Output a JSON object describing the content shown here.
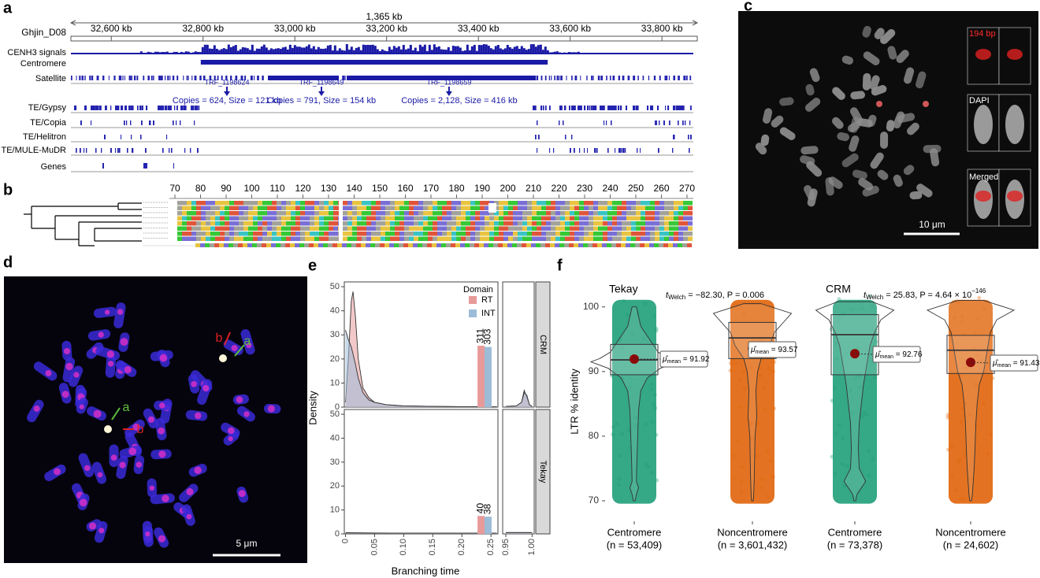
{
  "panel_a": {
    "label": "a",
    "chrom": "Ghjin_D08",
    "span": "1,365 kb",
    "xlim": [
      32512,
      33877
    ],
    "xticks": [
      {
        "value": 32600,
        "label": "32,600 kb"
      },
      {
        "value": 32800,
        "label": "32,800 kb"
      },
      {
        "value": 33000,
        "label": "33,000 kb"
      },
      {
        "value": 33200,
        "label": "33,200 kb"
      },
      {
        "value": 33400,
        "label": "33,400 kb"
      },
      {
        "value": 33600,
        "label": "33,600 kb"
      },
      {
        "value": 33800,
        "label": "33,800 kb"
      }
    ],
    "tracks": [
      "CENH3 signals",
      "Centromere",
      "Satellite",
      "TE/Gypsy",
      "TE/Copia",
      "TE/Helitron",
      "TE/MULE-MuDR",
      "Genes"
    ],
    "centromere": [
      32795,
      33551
    ],
    "satellites": [
      {
        "name": "TRF_1198624",
        "position": 32852,
        "note": "Copies = 624, Size = 121 kb"
      },
      {
        "name": "TRF_1198649",
        "position": 33058,
        "note": "Copies = 791, Size = 154 kb"
      },
      {
        "name": "TRF_1198659",
        "position": 33336,
        "note": "Copies = 2,128, Size = 416 kb"
      }
    ]
  },
  "panel_b": {
    "label": "b",
    "ruler": [
      70,
      80,
      90,
      100,
      110,
      120,
      130,
      140,
      150,
      160,
      170,
      180,
      190,
      200,
      210,
      220,
      230,
      240,
      250,
      260,
      270
    ]
  },
  "panel_c": {
    "label": "c",
    "probe": "194 bp",
    "dapi": "DAPI",
    "merged": "Merged",
    "scale": "10 μm"
  },
  "panel_d": {
    "label": "d",
    "arrows": [
      "b",
      "a",
      "a",
      "b"
    ],
    "scale": "5 μm"
  },
  "panel_e": {
    "label": "e",
    "ylabel": "Density",
    "xlabel": "Branching time",
    "legend_title": "Domain",
    "series": [
      {
        "name": "RT",
        "color": "#e89a9a"
      },
      {
        "name": "INT",
        "color": "#9dbcd8"
      }
    ],
    "ylim": [
      0,
      52
    ],
    "yticks": [
      0,
      10,
      20,
      30,
      40,
      50
    ],
    "xlim_left": [
      -0.002,
      0.262
    ],
    "xticks_left": [
      0,
      0.05,
      {
        "value": 0.1,
        "label": "0.10"
      },
      0.15,
      {
        "value": 0.2,
        "label": "0.20"
      },
      0.25
    ],
    "xlim_right": [
      0.944,
      1.004
    ],
    "xticks_right": [
      0.95,
      {
        "value": 1,
        "label": "1.00"
      }
    ],
    "bar_x": [
      0.233,
      0.245
    ],
    "facets": [
      {
        "name": "CRM",
        "bar_heights": [
          25.5,
          25
        ],
        "counts": [
          311,
          303
        ],
        "curves": [
          {
            "x": [
              0,
              0.005,
              0.01,
              0.013,
              0.017,
              0.022,
              0.03,
              0.04,
              0.05,
              0.07,
              0.1,
              0.15,
              0.2,
              0.26
            ],
            "values": [
              2,
              20,
              44,
              48,
              38,
              20,
              8,
              4,
              2,
              1,
              0.5,
              0.3,
              0.2,
              0.1
            ]
          },
          {
            "x": [
              0,
              0.005,
              0.01,
              0.013,
              0.017,
              0.022,
              0.03,
              0.04,
              0.05,
              0.07,
              0.1,
              0.15,
              0.2,
              0.26
            ],
            "values": [
              32,
              28,
              25,
              22,
              18,
              12,
              6,
              3,
              2,
              1,
              0.5,
              0.3,
              0.2,
              0.1
            ]
          }
        ],
        "right_curves": [
          {
            "x": [
              0.95,
              0.97,
              0.98,
              0.985,
              0.99,
              0.995,
              1.0
            ],
            "values": [
              0.3,
              0.5,
              2,
              7,
              4,
              1,
              0.3
            ]
          },
          {
            "x": [
              0.95,
              0.97,
              0.98,
              0.985,
              0.99,
              0.995,
              1.0
            ],
            "values": [
              0.3,
              0.5,
              2,
              6,
              5,
              1,
              0.3
            ]
          }
        ]
      },
      {
        "name": "Tekay",
        "bar_heights": [
          7.5,
          7.2
        ],
        "counts": [
          40,
          38
        ],
        "curves": [
          {
            "x": [
              0,
              0.05,
              0.1,
              0.15,
              0.2,
              0.26
            ],
            "values": [
              0.5,
              0.4,
              0.3,
              0.3,
              0.3,
              0.3
            ]
          },
          {
            "x": [
              0,
              0.05,
              0.1,
              0.15,
              0.2,
              0.26
            ],
            "values": [
              0.4,
              0.3,
              0.3,
              0.3,
              0.3,
              0.3
            ]
          }
        ],
        "right_curves": [
          {
            "x": [
              0.95,
              1.0
            ],
            "values": [
              0.6,
              0.6
            ]
          },
          {
            "x": [
              0.95,
              1.0
            ],
            "values": [
              0.5,
              0.5
            ]
          }
        ]
      }
    ]
  },
  "panel_f": {
    "label": "f",
    "ylabel": "LTR % identity",
    "ylim": [
      67,
      103.5
    ],
    "yticks": [
      70,
      80,
      90,
      100
    ],
    "mean_symbol": "μ̂",
    "mean_sub": "mean",
    "families": [
      {
        "name": "Tekay",
        "stat": {
          "t": "t",
          "sub": "Welch",
          "text": " = −82.30, P = 0.006"
        }
      },
      {
        "name": "CRM",
        "stat": {
          "t": "t",
          "sub": "Welch",
          "text": " = 25.83, P = 4.64 × 10",
          "sup": "−146"
        }
      }
    ],
    "groups": [
      {
        "name": "Centromere",
        "n": "(n = 53,409)",
        "color": "#1f9e78",
        "box": [
          89.5,
          91.8,
          94.2
        ],
        "mean": 91.92,
        "mean_label": " = 91.92",
        "violin_y": [
          100,
          97,
          95,
          93,
          92,
          91.5,
          90.5,
          89,
          87,
          84,
          80,
          76,
          73,
          72,
          71,
          70
        ],
        "violin_width": [
          0.05,
          0.15,
          0.35,
          0.55,
          0.8,
          1,
          0.6,
          0.3,
          0.15,
          0.1,
          0.08,
          0.06,
          0.05,
          0.1,
          0.05,
          0.02
        ]
      },
      {
        "name": "Noncentromere",
        "n": "(n = 3,601,432)",
        "color": "#e0640a",
        "box": [
          92,
          95.2,
          97.6
        ],
        "mean": 93.57,
        "mean_label": " = 93.57",
        "violin_y": [
          100.5,
          99,
          97.5,
          96,
          95,
          94,
          93,
          92,
          90,
          87,
          83,
          80,
          76,
          73,
          71,
          70
        ],
        "violin_width": [
          0.2,
          0.9,
          0.7,
          0.5,
          0.45,
          0.4,
          0.3,
          0.2,
          0.12,
          0.08,
          0.1,
          0.06,
          0.05,
          0.04,
          0.03,
          0.02
        ]
      },
      {
        "name": "Centromere",
        "n": "(n = 73,378)",
        "color": "#1f9e78",
        "box": [
          89.5,
          95.7,
          98.8
        ],
        "mean": 92.76,
        "mean_label": " = 92.76",
        "violin_y": [
          100.8,
          99.5,
          98,
          96,
          94,
          92,
          90,
          88,
          85,
          82,
          78,
          75,
          73,
          72,
          71,
          70
        ],
        "violin_width": [
          0.4,
          0.9,
          0.6,
          0.45,
          0.35,
          0.3,
          0.25,
          0.2,
          0.15,
          0.1,
          0.08,
          0.1,
          0.25,
          0.15,
          0.05,
          0.02
        ]
      },
      {
        "name": "Noncentromere",
        "n": "(n = 24,602)",
        "color": "#e0640a",
        "box": [
          89.7,
          93.3,
          95.6
        ],
        "mean": 91.43,
        "mean_label": " = 91.43",
        "violin_y": [
          101,
          99.5,
          98,
          96,
          94,
          92,
          90,
          88,
          85,
          82,
          78,
          75,
          73,
          71,
          70
        ],
        "violin_width": [
          0.3,
          1,
          0.6,
          0.45,
          0.4,
          0.35,
          0.3,
          0.2,
          0.15,
          0.12,
          0.1,
          0.08,
          0.06,
          0.04,
          0.02
        ]
      }
    ]
  }
}
